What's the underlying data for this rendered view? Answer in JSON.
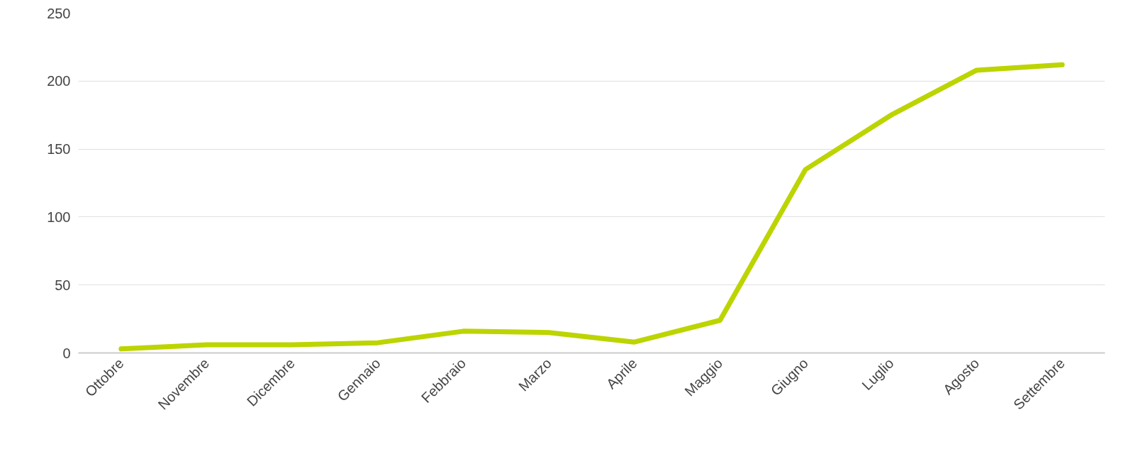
{
  "chart_data": {
    "type": "line",
    "categories": [
      "Ottobre",
      "Novembre",
      "Dicembre",
      "Gennaio",
      "Febbraio",
      "Marzo",
      "Aprile",
      "Maggio",
      "Giugno",
      "Luglio",
      "Agosto",
      "Settembre"
    ],
    "series": [
      {
        "color": "#bcd400",
        "values": [
          3,
          6,
          6,
          7.5,
          16,
          15,
          8,
          24,
          135,
          175,
          208,
          212
        ]
      }
    ],
    "ylim": [
      0,
      250
    ],
    "yticks": [
      0,
      50,
      100,
      150,
      200,
      250
    ],
    "grid": "y",
    "marker": "none",
    "line_style": "solid"
  }
}
